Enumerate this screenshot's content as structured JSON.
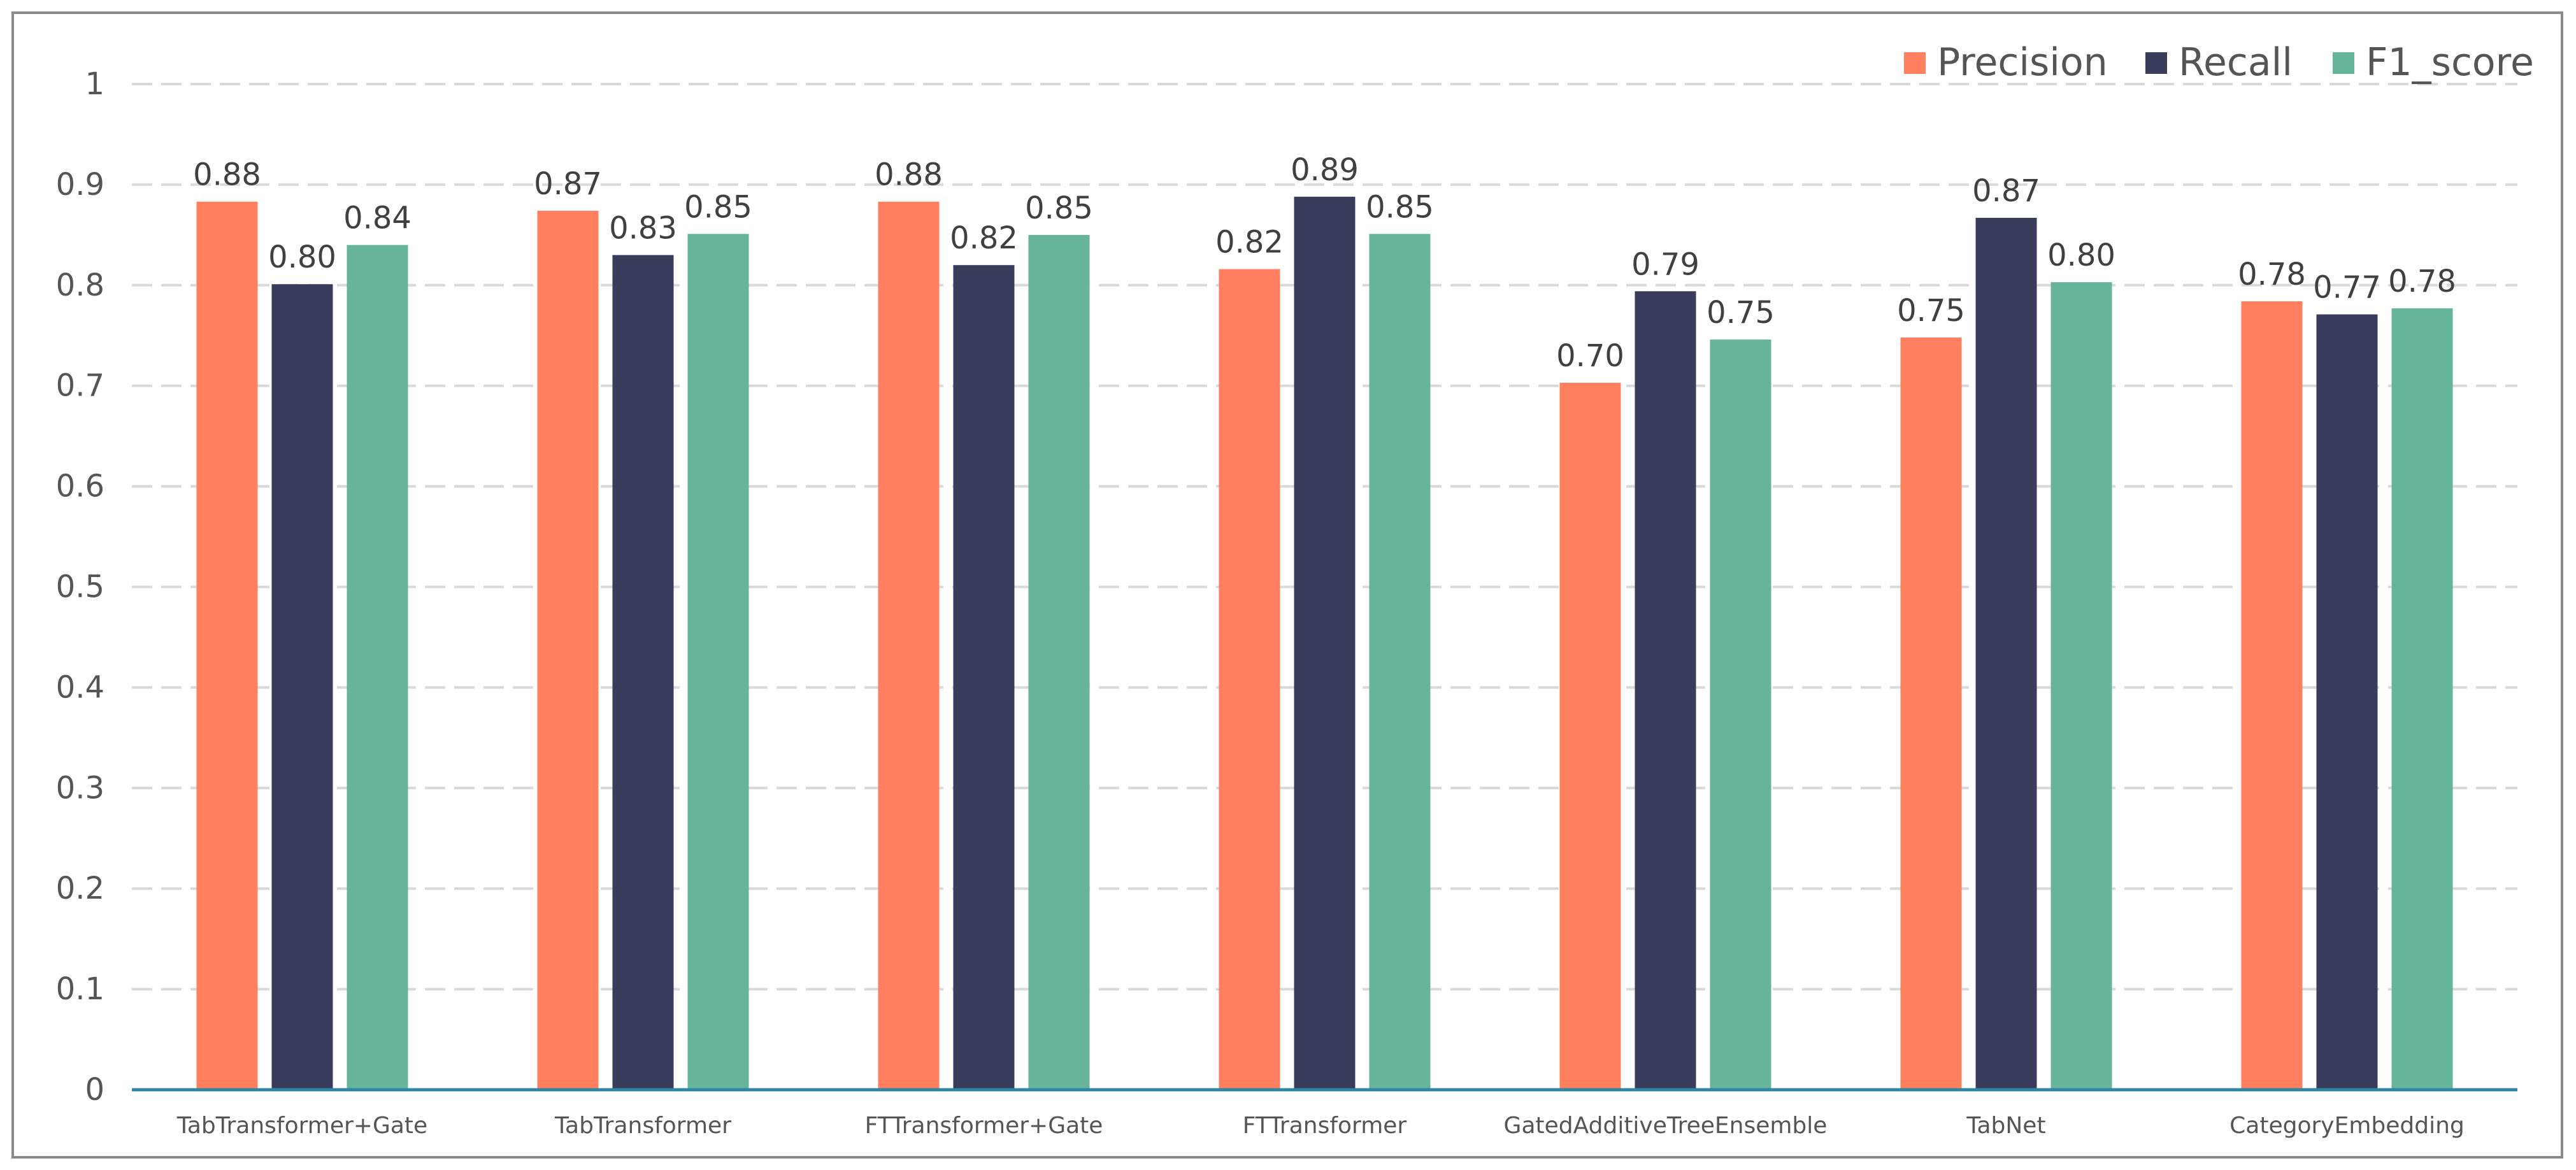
{
  "chart_data": {
    "type": "bar",
    "title": "",
    "xlabel": "",
    "ylabel": "",
    "ylim": [
      0,
      1
    ],
    "yticks": [
      "0",
      "0.1",
      "0.2",
      "0.3",
      "0.4",
      "0.5",
      "0.6",
      "0.7",
      "0.8",
      "0.9",
      "1"
    ],
    "grid": true,
    "legend_position": "top-right",
    "categories": [
      "TabTransformer+Gate",
      "TabTransformer",
      "FTTransformer+Gate",
      "FTTransformer",
      "GatedAdditiveTreeEnsemble",
      "TabNet",
      "CategoryEmbedding"
    ],
    "series": [
      {
        "name": "Precision",
        "color": "#FF7F5E",
        "values": [
          0.883,
          0.874,
          0.883,
          0.816,
          0.703,
          0.748,
          0.784
        ],
        "labels": [
          "0.88",
          "0.87",
          "0.88",
          "0.82",
          "0.70",
          "0.75",
          "0.78"
        ]
      },
      {
        "name": "Recall",
        "color": "#393C5A",
        "values": [
          0.801,
          0.83,
          0.82,
          0.888,
          0.794,
          0.867,
          0.771
        ],
        "labels": [
          "0.80",
          "0.83",
          "0.82",
          "0.89",
          "0.79",
          "0.87",
          "0.77"
        ]
      },
      {
        "name": "F1_score",
        "color": "#66B59A",
        "values": [
          0.84,
          0.851,
          0.85,
          0.851,
          0.746,
          0.803,
          0.777
        ],
        "labels": [
          "0.84",
          "0.85",
          "0.85",
          "0.85",
          "0.75",
          "0.80",
          "0.78"
        ]
      }
    ]
  },
  "colors": {
    "gridline": "#D9D9D9",
    "axis": "#2E86A6",
    "frame": "#8A8A8A"
  }
}
